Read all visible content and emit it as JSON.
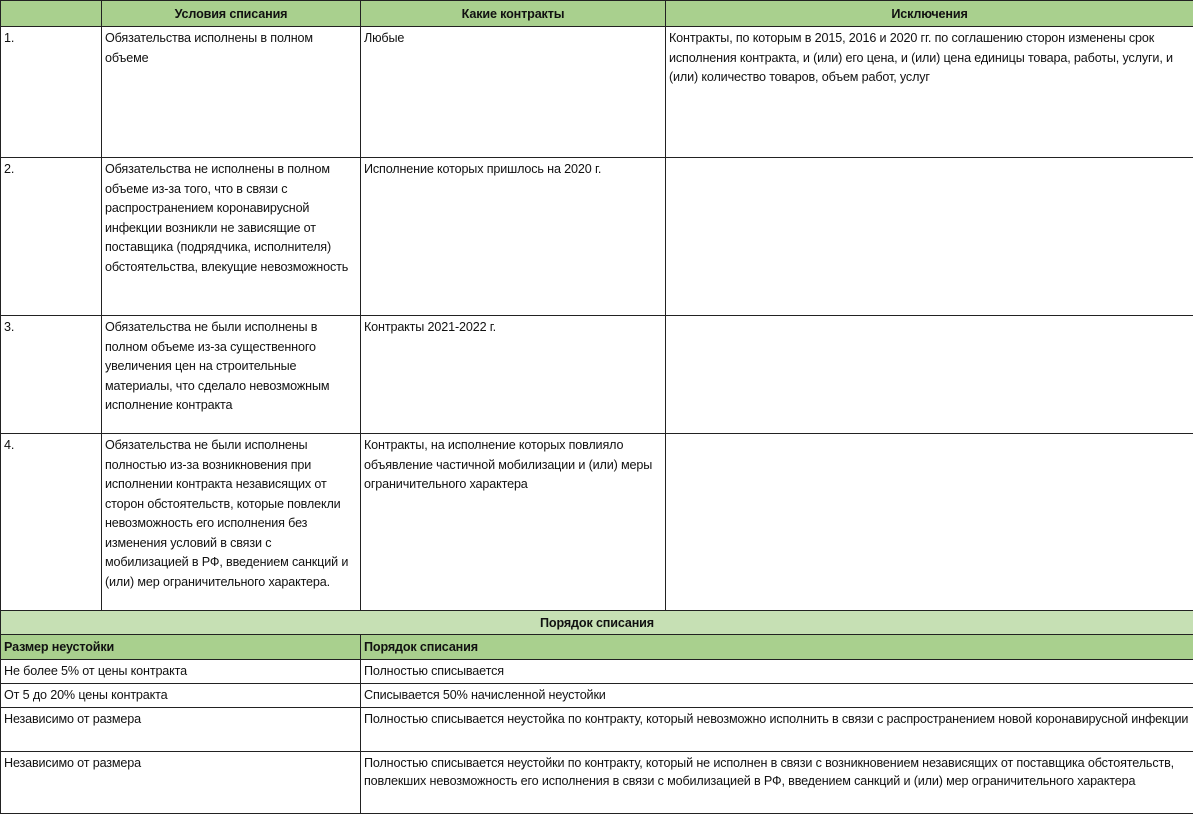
{
  "header": {
    "col1": "",
    "col2": "Условия списания",
    "col3": "Какие контракты",
    "col4": "Исключения"
  },
  "rows": [
    {
      "num": "1.",
      "condition": "Обязательства исполнены в полном объеме",
      "contracts": "Любые",
      "exceptions": "Контракты, по которым в 2015, 2016 и 2020 гг. по соглашению сторон изменены срок исполнения контракта, и (или) его цена, и (или) цена единицы товара, работы, услуги, и (или) количество товаров, объем работ, услуг"
    },
    {
      "num": "2.",
      "condition": "Обязательства не исполнены в полном объеме из-за того, что в связи с распространением коронавирусной инфекции возникли не зависящие от поставщика (подрядчика, исполнителя) обстоятельства, влекущие невозможность",
      "contracts": "Исполнение которых пришлось на 2020 г.",
      "exceptions": ""
    },
    {
      "num": "3.",
      "condition": "Обязательства не были исполнены в полном объеме из-за существенного увеличения цен на строительные материалы, что сделало невозможным исполнение контракта",
      "contracts": "Контракты 2021-2022 г.",
      "exceptions": ""
    },
    {
      "num": "4.",
      "condition": "Обязательства не были исполнены полностью из-за возникновения при исполнении контракта независящих от сторон обстоятельств, которые повлекли невозможность его исполнения без изменения условий в связи с мобилизацией в РФ, введением санкций и (или) мер ограничительного характера.",
      "contracts": "Контракты, на исполнение которых повлияло объявление частичной мобилизации и (или) меры ограничительного характера",
      "exceptions": ""
    }
  ],
  "procedure": {
    "title": "Порядок списания",
    "col1": "Размер неустойки",
    "col2": "Порядок списания",
    "rows": [
      {
        "size": "Не более 5% от цены контракта",
        "order": "Полностью списывается"
      },
      {
        "size": "От 5 до 20% цены контракта",
        "order": "Списывается 50% начисленной неустойки"
      },
      {
        "size": "Независимо от размера",
        "order": "Полностью списывается неустойка по контракту, который невозможно исполнить в связи с распространением новой коронавирусной инфекции"
      },
      {
        "size": "Независимо от размера",
        "order": "Полностью списывается неустойки по  контракту, который не исполнен в связи с возникновением независящих от поставщика обстоятельств, повлекших невозможность его исполнения в связи с мобилизацией в РФ, введением санкций и (или) мер ограничительного характера"
      }
    ]
  },
  "colors": {
    "header": "#a9d08e",
    "band": "#c6e0b4"
  }
}
